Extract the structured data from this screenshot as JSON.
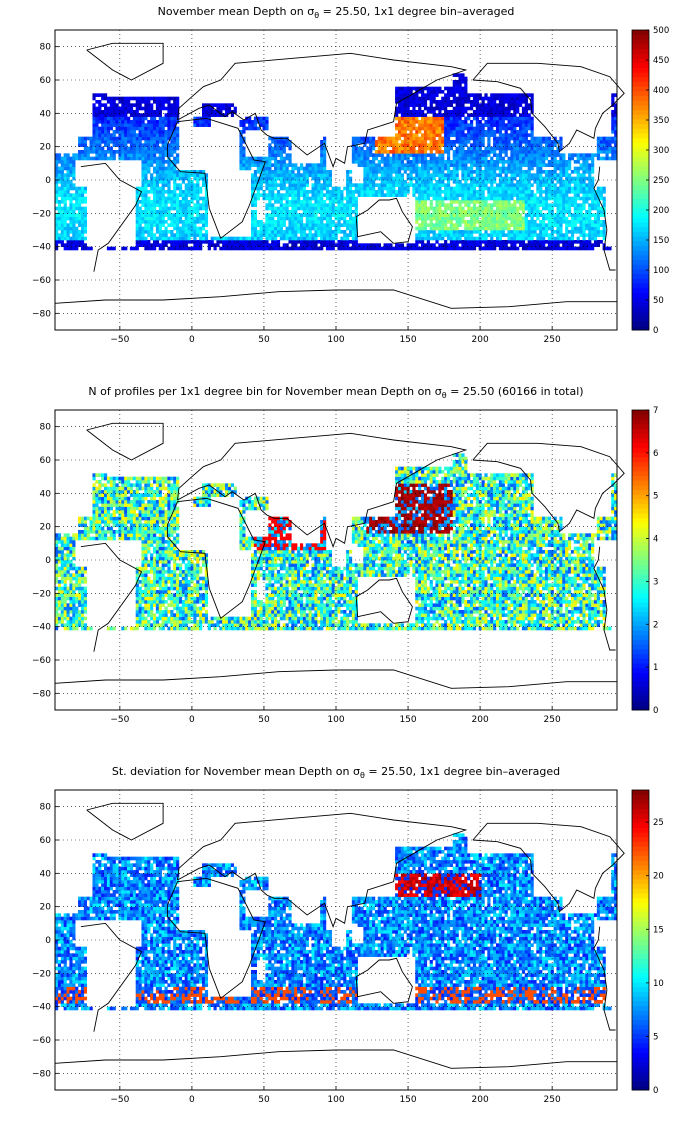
{
  "chart_data": [
    {
      "type": "heatmap",
      "title": "November mean Depth on σθ = 25.50, 1x1 degree bin–averaged",
      "title_parts": {
        "before": "November mean Depth on σ",
        "sub": "θ",
        "after": " = 25.50, 1x1 degree bin–averaged"
      },
      "x_ticks": [
        "-50",
        "0",
        "50",
        "100",
        "150",
        "200",
        "250"
      ],
      "y_ticks": [
        "80",
        "60",
        "40",
        "20",
        "0",
        "-20",
        "-40",
        "-60",
        "-80"
      ],
      "xlim": [
        -95,
        295
      ],
      "ylim": [
        -90,
        90
      ],
      "colorbar": {
        "min": 0,
        "max": 500,
        "ticks": [
          "0",
          "50",
          "100",
          "150",
          "200",
          "250",
          "300",
          "350",
          "400",
          "450",
          "500"
        ],
        "colormap": "jet"
      },
      "grid": true,
      "field": "depth"
    },
    {
      "type": "heatmap",
      "title": "N of profiles per 1x1 degree bin for November mean Depth on σθ = 25.50 (60166 in total)",
      "title_parts": {
        "before": "N of profiles per 1x1 degree bin for November mean Depth on σ",
        "sub": "θ",
        "after": " = 25.50 (60166 in total)"
      },
      "x_ticks": [
        "-50",
        "0",
        "50",
        "100",
        "150",
        "200",
        "250"
      ],
      "y_ticks": [
        "80",
        "60",
        "40",
        "20",
        "0",
        "-20",
        "-40",
        "-60",
        "-80"
      ],
      "xlim": [
        -95,
        295
      ],
      "ylim": [
        -90,
        90
      ],
      "colorbar": {
        "min": 0,
        "max": 7,
        "ticks": [
          "0",
          "1",
          "2",
          "3",
          "4",
          "5",
          "6",
          "7"
        ],
        "colormap": "jet"
      },
      "grid": true,
      "field": "count"
    },
    {
      "type": "heatmap",
      "title": "St. deviation for November mean Depth on σθ = 25.50, 1x1 degree bin–averaged",
      "title_parts": {
        "before": "St. deviation for November mean Depth on σ",
        "sub": "θ",
        "after": " = 25.50, 1x1 degree bin–averaged"
      },
      "x_ticks": [
        "-50",
        "0",
        "50",
        "100",
        "150",
        "200",
        "250"
      ],
      "y_ticks": [
        "80",
        "60",
        "40",
        "20",
        "0",
        "-20",
        "-40",
        "-60",
        "-80"
      ],
      "xlim": [
        -95,
        295
      ],
      "ylim": [
        -90,
        90
      ],
      "colorbar": {
        "min": 0,
        "max": 28,
        "ticks": [
          "0",
          "5",
          "10",
          "15",
          "20",
          "25"
        ],
        "colormap": "jet"
      },
      "grid": true,
      "field": "std"
    }
  ]
}
